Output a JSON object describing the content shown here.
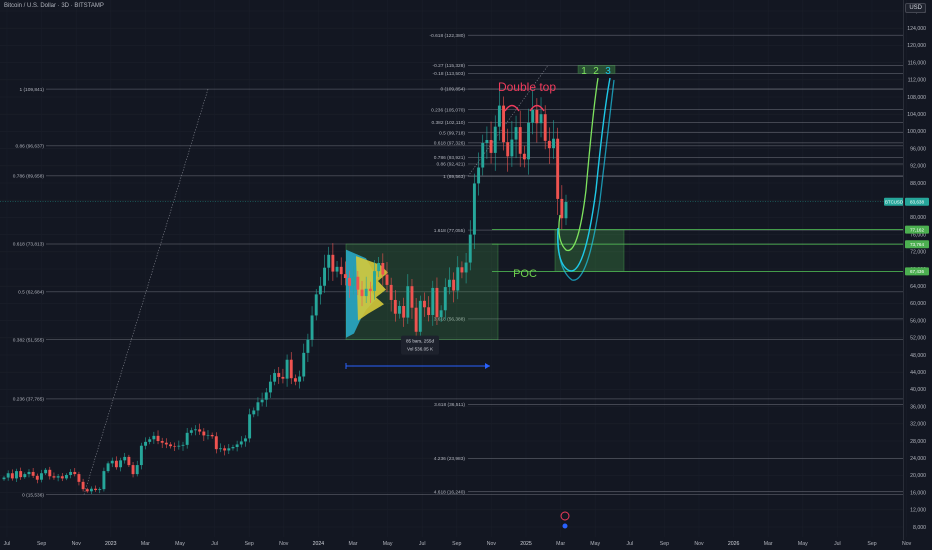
{
  "title": "Bitcoin / U.S. Dollar · 3D · BITSTAMP",
  "currency": "USD",
  "colors": {
    "background": "#131722",
    "up": "#26a69a",
    "down": "#ef5350",
    "level": "#8c8f99",
    "green": "#4caf50",
    "cyan": "#1ec9e8",
    "annot_red": "#ef3b5c",
    "annot_green": "#7ee35e",
    "measure": "#2962ff"
  },
  "chart_data": {
    "type": "candlestick",
    "y_ticks": [
      "128,000",
      "124,000",
      "120,000",
      "116,000",
      "112,000",
      "108,000",
      "104,000",
      "100,000",
      "96,000",
      "92,000",
      "88,000",
      "84,000",
      "80,000",
      "76,000",
      "72,000",
      "68,000",
      "64,000",
      "60,000",
      "56,000",
      "52,000",
      "48,000",
      "44,000",
      "40,000",
      "36,000",
      "32,000",
      "28,000",
      "24,000",
      "20,000",
      "16,000",
      "12,000",
      "8,000"
    ],
    "x_ticks": [
      "Jul",
      "Sep",
      "Nov",
      "2023",
      "Mar",
      "May",
      "Jul",
      "Sep",
      "Nov",
      "2024",
      "Mar",
      "May",
      "Jul",
      "Sep",
      "Nov",
      "2025",
      "Mar",
      "May",
      "Jul",
      "Sep",
      "Nov",
      "2026",
      "Mar",
      "May",
      "Jul",
      "Sep",
      "Nov"
    ],
    "left_fib": [
      {
        "label": "1 (109,841)",
        "price": 109841
      },
      {
        "label": "0.86 (96,637)",
        "price": 96637
      },
      {
        "label": "0.786 (89,658)",
        "price": 89658
      },
      {
        "label": "0.618 (73,813)",
        "price": 73813
      },
      {
        "label": "0.5 (62,684)",
        "price": 62684
      },
      {
        "label": "0.382 (51,555)",
        "price": 51555
      },
      {
        "label": "0.236 (37,785)",
        "price": 37785
      },
      {
        "label": "0 (15,536)",
        "price": 15536
      }
    ],
    "right_fib": [
      {
        "label": "-0.618 (122,380)",
        "price": 122380
      },
      {
        "label": "-0.27 (115,328)",
        "price": 115328
      },
      {
        "label": "-0.18 (113,503)",
        "price": 113503
      },
      {
        "label": "0 (109,854)",
        "price": 109854
      },
      {
        "label": "0.236 (105,070)",
        "price": 105070
      },
      {
        "label": "0.382 (102,110)",
        "price": 102110
      },
      {
        "label": "0.5 (99,718)",
        "price": 99718
      },
      {
        "label": "0.618 (97,326)",
        "price": 97326
      },
      {
        "label": "0.786 (93,921)",
        "price": 93921
      },
      {
        "label": "0.86 (92,421)",
        "price": 92421
      },
      {
        "label": "1 (89,563)",
        "price": 89563
      },
      {
        "label": "1.618 (77,055)",
        "price": 77055
      },
      {
        "label": "3.618 (56,388)",
        "price": 56388
      },
      {
        "label": "3.618 (36,511)",
        "price": 36511
      },
      {
        "label": "4.236 (23,983)",
        "price": 23983
      },
      {
        "label": "4.618 (16,240)",
        "price": 16240
      }
    ],
    "price_labels": [
      {
        "label": "BTCUSD",
        "value": "83,638",
        "price": 83638,
        "color": "#26a69a"
      },
      {
        "label": "",
        "value": "77,162",
        "price": 77162,
        "color": "#4caf50"
      },
      {
        "label": "",
        "value": "73,764",
        "price": 73764,
        "color": "#4caf50"
      },
      {
        "label": "",
        "value": "67,436",
        "price": 67436,
        "color": "#4caf50"
      }
    ],
    "close_series": [
      19500,
      20500,
      19300,
      21000,
      19600,
      20300,
      20800,
      19900,
      19000,
      20500,
      21300,
      19800,
      19500,
      19800,
      19300,
      20100,
      20800,
      20300,
      18500,
      16800,
      16300,
      16900,
      16600,
      16800,
      21000,
      22800,
      23400,
      21900,
      23500,
      24300,
      22400,
      20300,
      22400,
      26900,
      27800,
      28400,
      29200,
      28000,
      27600,
      27200,
      26800,
      26700,
      26900,
      27100,
      29900,
      30500,
      30700,
      30200,
      29300,
      29400,
      29100,
      26100,
      26300,
      25800,
      26300,
      26600,
      27200,
      27900,
      28600,
      34200,
      35100,
      37000,
      37600,
      39300,
      41800,
      43800,
      42900,
      42500,
      46900,
      42600,
      41800,
      43000,
      48500,
      51600,
      57200,
      62100,
      64100,
      68300,
      71300,
      67400,
      68500,
      66800,
      65900,
      64100,
      66200,
      63200,
      61700,
      63400,
      62900,
      67500,
      69400,
      66700,
      64300,
      60800,
      57600,
      59400,
      56700,
      64000,
      59000,
      53400,
      60600,
      59100,
      57300,
      63600,
      56800,
      58400,
      63800,
      65500,
      63000,
      68400,
      67200,
      69500,
      76000,
      87900,
      91600,
      97300,
      98000,
      95000,
      101100,
      106000,
      97500,
      94200,
      98100,
      101000,
      94800,
      93500,
      102000,
      105000,
      101900,
      104000,
      97800,
      96100,
      98300,
      84300,
      79800,
      83600
    ],
    "window_span": {
      "bars": "85 bars, 255d",
      "volume": "Vol 536.05 K"
    },
    "annotations": [
      "Double top",
      "POC",
      "1",
      "2",
      "3"
    ]
  }
}
